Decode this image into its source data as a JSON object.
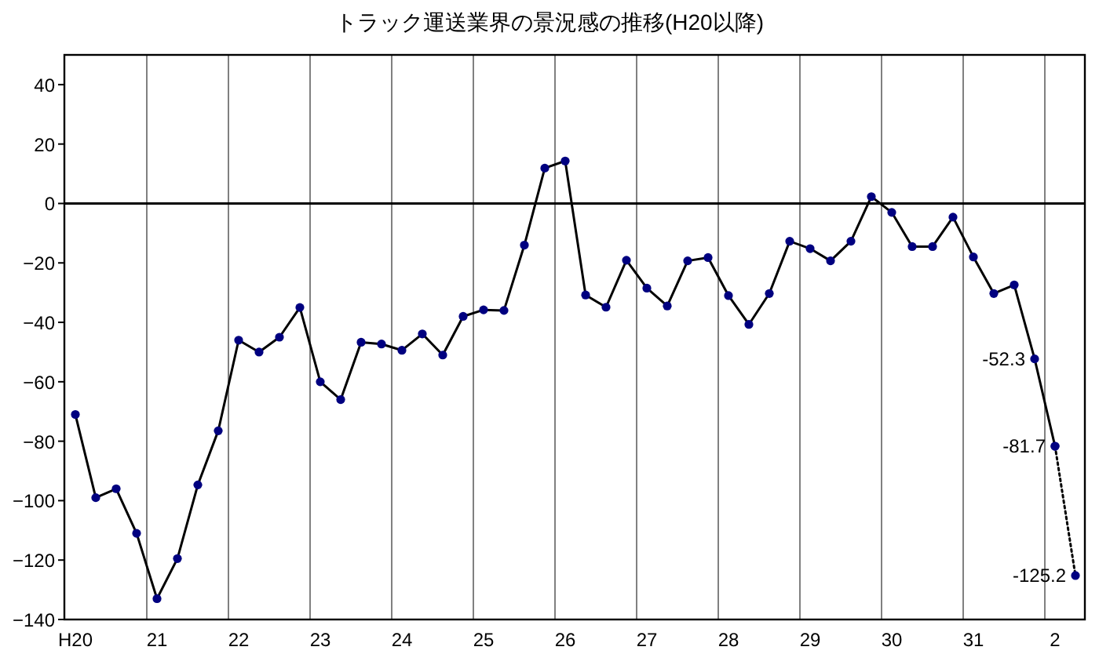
{
  "chart_data": {
    "type": "line",
    "title": "トラック運送業界の景況感の推移(H20以降)",
    "categories": [
      "H20",
      null,
      null,
      null,
      "21",
      null,
      null,
      null,
      "22",
      null,
      null,
      null,
      "23",
      null,
      null,
      null,
      "24",
      null,
      null,
      null,
      "25",
      null,
      null,
      null,
      "26",
      null,
      null,
      null,
      "27",
      null,
      null,
      null,
      "28",
      null,
      null,
      null,
      "29",
      null,
      null,
      null,
      "30",
      null,
      null,
      null,
      "31",
      null,
      null,
      null,
      "2",
      null
    ],
    "series": [
      {
        "color": "#000080",
        "line_style": "solid",
        "values": [
          -71,
          -99,
          -96,
          -111,
          -133,
          -119.5,
          -94.7,
          -76.5,
          -46,
          -50,
          -45,
          -35,
          -60,
          -66,
          -46.7,
          -47.3,
          -49.4,
          -43.9,
          -51,
          -38,
          -35.8,
          -36,
          -14,
          11.9,
          14.3,
          -30.8,
          -34.9,
          -19.1,
          -28.5,
          -34.5,
          -19.3,
          -18.2,
          -31,
          -40.7,
          -30.3,
          -12.7,
          -15.2,
          -19.3,
          -12.7,
          2.3,
          -3,
          -14.5,
          -14.5,
          -4.6,
          -18,
          -30.3,
          -27.4,
          -52.3,
          -81.7,
          null
        ],
        "value_labels": [
          null,
          null,
          null,
          null,
          null,
          null,
          null,
          null,
          null,
          null,
          null,
          null,
          null,
          null,
          null,
          null,
          null,
          null,
          null,
          null,
          null,
          null,
          null,
          null,
          null,
          null,
          null,
          null,
          null,
          null,
          null,
          null,
          null,
          null,
          null,
          null,
          null,
          null,
          null,
          null,
          null,
          null,
          null,
          null,
          null,
          null,
          null,
          "-52.3",
          "-81.7",
          null
        ]
      },
      {
        "color": "#000080",
        "line_style": "dotted",
        "values": [
          null,
          null,
          null,
          null,
          null,
          null,
          null,
          null,
          null,
          null,
          null,
          null,
          null,
          null,
          null,
          null,
          null,
          null,
          null,
          null,
          null,
          null,
          null,
          null,
          null,
          null,
          null,
          null,
          null,
          null,
          null,
          null,
          null,
          null,
          null,
          null,
          null,
          null,
          null,
          null,
          null,
          null,
          null,
          null,
          null,
          null,
          null,
          null,
          -81.7,
          -125.2
        ],
        "value_labels": [
          null,
          null,
          null,
          null,
          null,
          null,
          null,
          null,
          null,
          null,
          null,
          null,
          null,
          null,
          null,
          null,
          null,
          null,
          null,
          null,
          null,
          null,
          null,
          null,
          null,
          null,
          null,
          null,
          null,
          null,
          null,
          null,
          null,
          null,
          null,
          null,
          null,
          null,
          null,
          null,
          null,
          null,
          null,
          null,
          null,
          null,
          null,
          null,
          null,
          "-125.2"
        ]
      }
    ],
    "ylim": [
      -140,
      50
    ],
    "yticks": [
      -140,
      -120,
      -100,
      -80,
      -60,
      -40,
      -20,
      0,
      20,
      40
    ],
    "grid": "x",
    "marker": "circle",
    "ref_lines": [
      {
        "axis": "y",
        "value": 0,
        "color": "#000000"
      }
    ]
  }
}
